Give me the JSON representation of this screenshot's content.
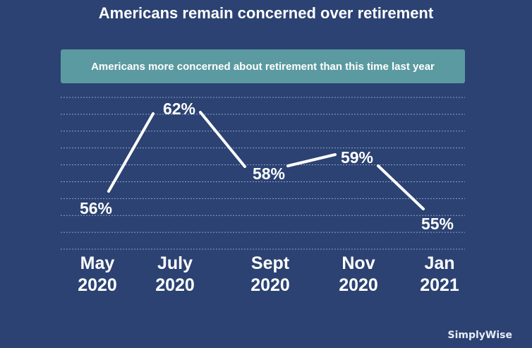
{
  "title": "Americans remain concerned over retirement",
  "subtitle": "Americans more concerned about retirement than this time last year",
  "brand": "SimplyWise",
  "colors": {
    "background": "#2b4272",
    "banner": "#5b9aa0",
    "line": "#ffffff",
    "grid": "#8fa3c8"
  },
  "chart_data": {
    "type": "line",
    "title": "Americans remain concerned over retirement",
    "subtitle": "Americans more concerned about retirement than this time last year",
    "categories": [
      "May 2020",
      "July 2020",
      "Sept 2020",
      "Nov 2020",
      "Jan 2021"
    ],
    "x_labels": [
      [
        "May",
        "2020"
      ],
      [
        "July",
        "2020"
      ],
      [
        "Sept",
        "2020"
      ],
      [
        "Nov",
        "2020"
      ],
      [
        "Jan",
        "2021"
      ]
    ],
    "series": [
      {
        "values": [
          56,
          62,
          58,
          59,
          55
        ]
      }
    ],
    "data_labels": [
      "56%",
      "62%",
      "58%",
      "59%",
      "55%"
    ],
    "xlabel": "",
    "ylabel": "",
    "grid": true,
    "legend": "none"
  }
}
